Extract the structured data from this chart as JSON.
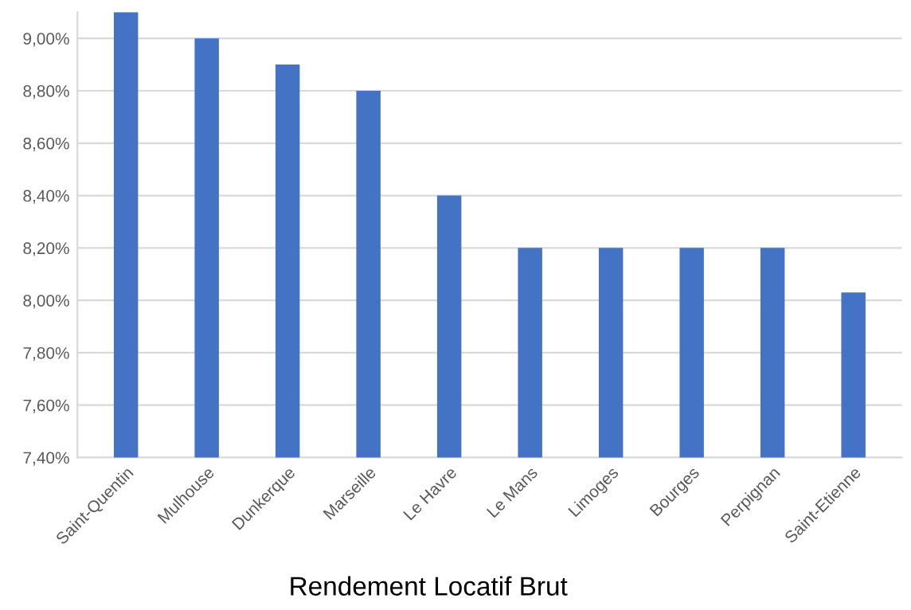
{
  "chart_data": {
    "type": "bar",
    "title": "Rendement Locatif Brut",
    "categories": [
      "Saint-Quentin",
      "Mulhouse",
      "Dunkerque",
      "Marseille",
      "Le Havre",
      "Le Mans",
      "Limoges",
      "Bourges",
      "Perpignan",
      "Saint-Etienne"
    ],
    "values": [
      9.1,
      9.0,
      8.9,
      8.8,
      8.4,
      8.2,
      8.2,
      8.2,
      8.2,
      8.03
    ],
    "color": "#4472c4",
    "ylim": [
      7.4,
      9.1
    ],
    "yticks": [
      {
        "value": 7.4,
        "label": "7,40%"
      },
      {
        "value": 7.6,
        "label": "7,60%"
      },
      {
        "value": 7.8,
        "label": "7,80%"
      },
      {
        "value": 8.0,
        "label": "8,00%"
      },
      {
        "value": 8.2,
        "label": "8,20%"
      },
      {
        "value": 8.4,
        "label": "8,40%"
      },
      {
        "value": 8.6,
        "label": "8,60%"
      },
      {
        "value": 8.8,
        "label": "8,80%"
      },
      {
        "value": 9.0,
        "label": "9,00%"
      }
    ],
    "grid": "y"
  }
}
